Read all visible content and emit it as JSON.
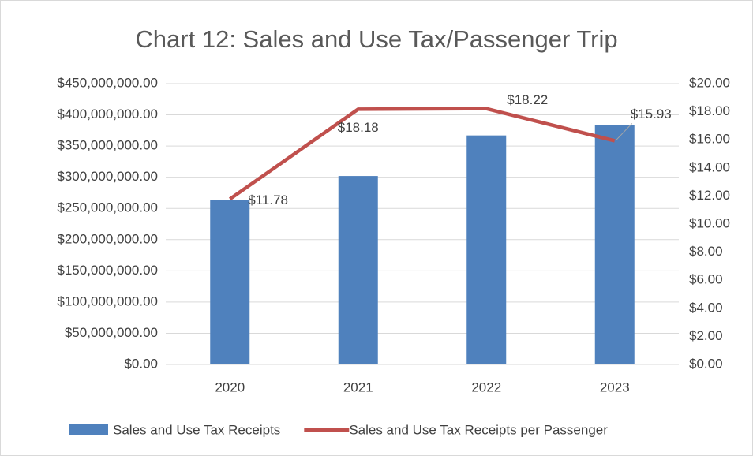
{
  "chart_data": {
    "type": "bar_line",
    "title": "Chart 12: Sales and Use Tax/Passenger Trip",
    "categories": [
      "2020",
      "2021",
      "2022",
      "2023"
    ],
    "series": [
      {
        "name": "Sales and Use Tax Receipts",
        "type": "bar",
        "color": "#4f81bd",
        "values": [
          263000000,
          302000000,
          367000000,
          383000000
        ]
      },
      {
        "name": "Sales and Use Tax Receipts per Passenger",
        "type": "line",
        "axis": "y2",
        "color": "#c0504d",
        "values": [
          11.78,
          18.18,
          18.22,
          15.93
        ],
        "value_labels": [
          "$11.78",
          "$18.18",
          "$18.22",
          "$15.93"
        ]
      }
    ],
    "ylim": [
      0,
      450000000
    ],
    "yticks": [
      {
        "value": 0,
        "label": "$0.00"
      },
      {
        "value": 50000000,
        "label": "$50,000,000.00"
      },
      {
        "value": 100000000,
        "label": "$100,000,000.00"
      },
      {
        "value": 150000000,
        "label": "$150,000,000.00"
      },
      {
        "value": 200000000,
        "label": "$200,000,000.00"
      },
      {
        "value": 250000000,
        "label": "$250,000,000.00"
      },
      {
        "value": 300000000,
        "label": "$300,000,000.00"
      },
      {
        "value": 350000000,
        "label": "$350,000,000.00"
      },
      {
        "value": 400000000,
        "label": "$400,000,000.00"
      },
      {
        "value": 450000000,
        "label": "$450,000,000.00"
      }
    ],
    "y2lim": [
      0,
      20
    ],
    "y2ticks": [
      {
        "value": 0,
        "label": "$0.00"
      },
      {
        "value": 2,
        "label": "$2.00"
      },
      {
        "value": 4,
        "label": "$4.00"
      },
      {
        "value": 6,
        "label": "$6.00"
      },
      {
        "value": 8,
        "label": "$8.00"
      },
      {
        "value": 10,
        "label": "$10.00"
      },
      {
        "value": 12,
        "label": "$12.00"
      },
      {
        "value": 14,
        "label": "$14.00"
      },
      {
        "value": 16,
        "label": "$16.00"
      },
      {
        "value": 18,
        "label": "$18.00"
      },
      {
        "value": 20,
        "label": "$20.00"
      }
    ],
    "grid": true,
    "legend": "bottom"
  }
}
